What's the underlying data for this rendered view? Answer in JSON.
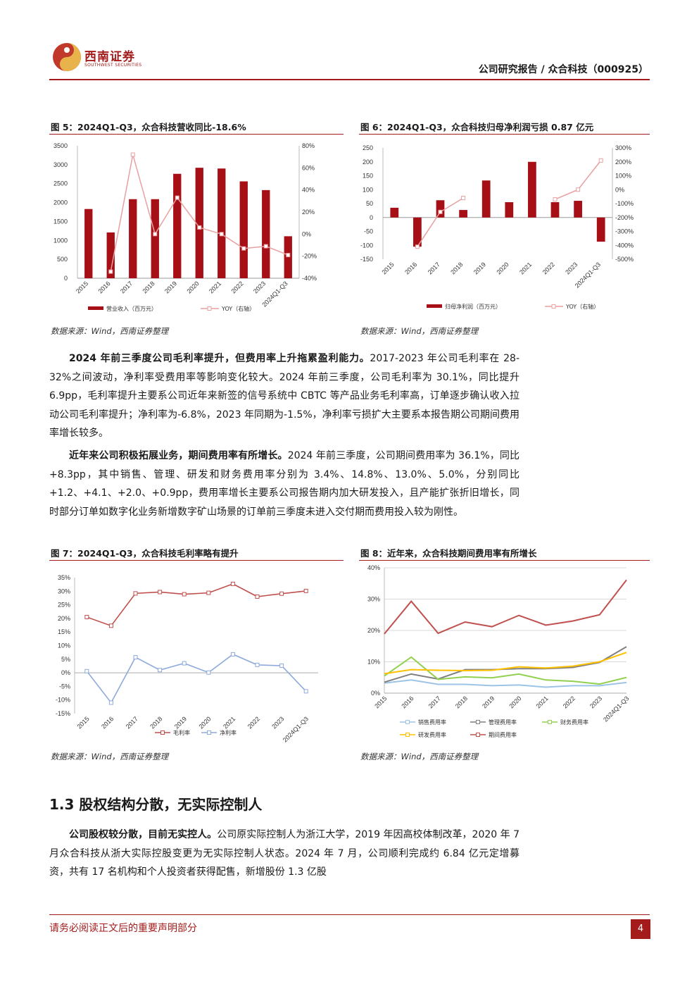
{
  "header": {
    "logo_cn": "西南证券",
    "logo_en": "SOUTHWEST SECURITIES",
    "title": "公司研究报告 / 众合科技（000925）"
  },
  "figures": [
    {
      "title": "图 5：2024Q1-Q3，众合科技营收同比-18.6%",
      "source": "数据来源：Wind，西南证券整理",
      "legend": [
        "营业收入（百万元）",
        "YOY（右轴）"
      ],
      "chart_data": {
        "type": "bar",
        "categories": [
          "2015",
          "2016",
          "2017",
          "2018",
          "2019",
          "2020",
          "2021",
          "2022",
          "2023",
          "2024Q1-Q3"
        ],
        "series": [
          {
            "name": "营业收入（百万元）",
            "type": "bar",
            "axis": "left",
            "values": [
              1830,
              1210,
              2090,
              2090,
              2760,
              2920,
              2900,
              2560,
              2330,
              1110
            ]
          },
          {
            "name": "YOY（右轴）",
            "type": "line",
            "axis": "right",
            "values": [
              null,
              -34,
              72,
              0,
              33,
              6,
              0,
              -13,
              -11,
              -19
            ]
          }
        ],
        "yticks_left": [
          "3500",
          "3000",
          "2500",
          "2000",
          "1500",
          "1000",
          "500",
          "0"
        ],
        "yticks_right": [
          "80%",
          "60%",
          "40%",
          "20%",
          "0%",
          "-20%",
          "-40%"
        ],
        "ylim_left": [
          0,
          3500
        ],
        "ylim_right": [
          -40,
          80
        ]
      }
    },
    {
      "title": "图 6：2024Q1-Q3，众合科技归母净利润亏损 0.87 亿元",
      "source": "数据来源：Wind，西南证券整理",
      "legend": [
        "归母净利润（百万元）",
        "YOY（右轴）"
      ],
      "chart_data": {
        "type": "bar",
        "categories": [
          "2015",
          "2016",
          "2017",
          "2018",
          "2019",
          "2020",
          "2021",
          "2022",
          "2023",
          "2024Q1-Q3"
        ],
        "series": [
          {
            "name": "归母净利润（百万元）",
            "type": "bar",
            "axis": "left",
            "values": [
              35,
              -105,
              62,
              27,
              133,
              55,
              200,
              55,
              60,
              -87
            ]
          },
          {
            "name": "YOY（右轴）",
            "type": "line",
            "axis": "right",
            "values": [
              null,
              -410,
              -160,
              -60,
              null,
              null,
              null,
              -70,
              0,
              210
            ]
          }
        ],
        "yticks_left": [
          "250",
          "200",
          "150",
          "100",
          "50",
          "0",
          "-50",
          "-100",
          "-150"
        ],
        "yticks_right": [
          "300%",
          "200%",
          "100%",
          "0%",
          "-100%",
          "-200%",
          "-300%",
          "-400%",
          "-500%"
        ],
        "ylim_left": [
          -150,
          250
        ],
        "ylim_right": [
          -500,
          300
        ]
      }
    },
    {
      "title": "图 7：2024Q1-Q3，众合科技毛利率略有提升",
      "source": "数据来源：Wind，西南证券整理",
      "legend": [
        "毛利率",
        "净利率"
      ],
      "chart_data": {
        "type": "line",
        "categories": [
          "2015",
          "2016",
          "2017",
          "2018",
          "2019",
          "2020",
          "2021",
          "2022",
          "2023",
          "2024Q1-Q3"
        ],
        "series": [
          {
            "name": "毛利率",
            "values": [
              20.5,
              17.3,
              29.2,
              29.7,
              28.9,
              29.4,
              32.7,
              28.0,
              29.1,
              30.1
            ]
          },
          {
            "name": "净利率",
            "values": [
              0.6,
              -11.0,
              5.7,
              1.0,
              3.5,
              0.1,
              6.8,
              2.9,
              2.6,
              -6.8
            ]
          }
        ],
        "yticks": [
          "35%",
          "30%",
          "25%",
          "20%",
          "15%",
          "10%",
          "5%",
          "0%",
          "-5%",
          "-10%",
          "-15%"
        ],
        "ylim": [
          -15,
          35
        ]
      }
    },
    {
      "title": "图 8：近年来，众合科技期间费用率有所增长",
      "source": "数据来源：Wind，西南证券整理",
      "legend": [
        "销售费用率",
        "管理费用率",
        "财务费用率",
        "研发费用率",
        "期间费用率"
      ],
      "chart_data": {
        "type": "line",
        "categories": [
          "2015",
          "2016",
          "2017",
          "2018",
          "2019",
          "2020",
          "2021",
          "2022",
          "2023",
          "2024Q1-Q3"
        ],
        "series": [
          {
            "name": "销售费用率",
            "values": [
              3.2,
              4.2,
              2.8,
              2.8,
              2.4,
              2.6,
              1.9,
              2.4,
              2.4,
              3.4
            ]
          },
          {
            "name": "管理费用率",
            "values": [
              3.5,
              6.1,
              4.5,
              7.5,
              7.5,
              7.8,
              7.8,
              8.2,
              9.8,
              14.8
            ]
          },
          {
            "name": "财务费用率",
            "values": [
              5.5,
              11.5,
              4.4,
              5.2,
              4.9,
              6.1,
              4.2,
              3.8,
              2.9,
              5.0
            ]
          },
          {
            "name": "研发费用率",
            "values": [
              6.2,
              7.5,
              7.3,
              7.2,
              7.3,
              8.4,
              8.0,
              8.6,
              10.0,
              13.0
            ]
          },
          {
            "name": "期间费用率",
            "values": [
              18.9,
              29.3,
              19.1,
              22.7,
              21.2,
              24.8,
              21.7,
              23.0,
              25.0,
              36.1
            ]
          }
        ],
        "yticks": [
          "40%",
          "30%",
          "20%",
          "10%",
          "0%"
        ],
        "ylim": [
          0,
          40
        ]
      }
    }
  ],
  "colors": {
    "brand_red": "#a31b1b",
    "bar_red": "#a50f15",
    "yoy_pink": "#e8a0a0",
    "margin_red": "#c0504d",
    "net_blue": "#8eaadb",
    "sales_blue": "#9dc3e6",
    "mgmt_gray": "#7f7f7f",
    "fin_green": "#92d050",
    "rd_yellow": "#ffc000",
    "period_red": "#c0504d"
  },
  "paragraphs": [
    {
      "lead": "2024 年前三季度公司毛利率提升，但费用率上升拖累盈利能力。",
      "text": "2017-2023 年公司毛利率在 28-32%之间波动，净利率受费用率等影响变化较大。2024 年前三季度，公司毛利率为 30.1%，同比提升 6.9pp，毛利率提升主要系公司近年来新签的信号系统中 CBTC 等产品业务毛利率高，订单逐步确认收入拉动公司毛利率提升；净利率为-6.8%，2023 年同期为-1.5%，净利率亏损扩大主要系本报告期公司期间费用率增长较多。"
    },
    {
      "lead": "近年来公司积极拓展业务，期间费用率有所增长。",
      "text": "2024 年前三季度，公司期间费用率为 36.1%，同比+8.3pp，其中销售、管理、研发和财务费用率分别为 3.4%、14.8%、13.0%、5.0%，分别同比+1.2、+4.1、+2.0、+0.9pp，费用率增长主要系公司报告期内加大研发投入，且产能扩张折旧增长，同时部分订单如数字化业务新增数字矿山场景的订单前三季度未进入交付期而费用投入较为刚性。"
    },
    {
      "lead": "公司股权较分散，目前无实控人。",
      "text": "公司原实际控制人为浙江大学，2019 年因高校体制改革，2020 年 7 月众合科技从浙大实际控股变更为无实际控制人状态。2024 年 7 月，公司顺利完成约 6.84 亿元定增募资，共有 17 名机构和个人投资者获得配售，新增股份 1.3 亿股"
    }
  ],
  "section": {
    "title": "1.3 股权结构分散，无实际控制人"
  },
  "footer": {
    "note": "请务必阅读正文后的重要声明部分",
    "page": "4"
  }
}
